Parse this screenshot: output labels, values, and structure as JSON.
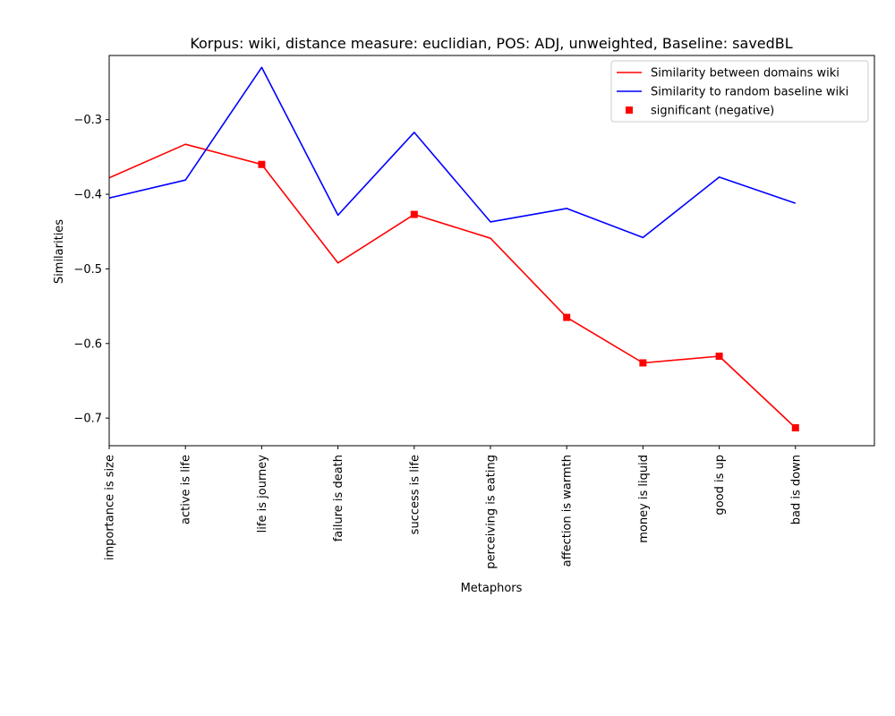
{
  "chart_data": {
    "type": "line",
    "title": "Korpus: wiki, distance measure: euclidian, POS: ADJ, unweighted, Baseline: savedBL",
    "xlabel": "Metaphors",
    "ylabel": "Similarities",
    "categories": [
      "importance is size",
      "active is life",
      "life is journey",
      "failure is death",
      "success is life",
      "perceiving is eating",
      "affection is warmth",
      "money is liquid",
      "good is up",
      "bad is down"
    ],
    "ylim": [
      -0.737,
      -0.214
    ],
    "yticks": [
      -0.3,
      -0.4,
      -0.5,
      -0.6,
      -0.7
    ],
    "ytick_labels": [
      "−0.3",
      "−0.4",
      "−0.5",
      "−0.6",
      "−0.7"
    ],
    "grid": false,
    "legend_position": "top-right",
    "series": [
      {
        "name": "Similarity between domains wiki",
        "color": "#ff0000",
        "values": [
          -0.378,
          -0.333,
          -0.36,
          -0.492,
          -0.427,
          -0.459,
          -0.565,
          -0.626,
          -0.617,
          -0.713
        ]
      },
      {
        "name": "Similarity to random baseline wiki",
        "color": "#0000ff",
        "values": [
          -0.405,
          -0.381,
          -0.23,
          -0.428,
          -0.317,
          -0.437,
          -0.419,
          -0.458,
          -0.377,
          -0.412
        ]
      }
    ],
    "significant": {
      "name": "significant (negative)",
      "color": "#ff0000",
      "marker": "square",
      "indices": [
        2,
        4,
        6,
        7,
        8,
        9
      ]
    }
  }
}
